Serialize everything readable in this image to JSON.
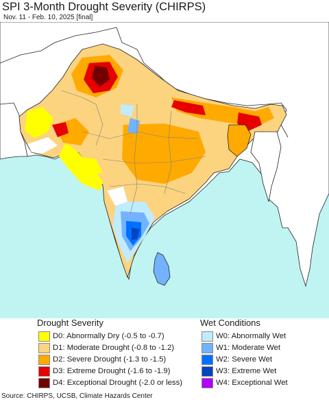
{
  "title": "SPI 3-Month Drought Severity (CHIRPS)",
  "subtitle": "Nov. 11 - Feb. 10, 2025 [final]",
  "colors": {
    "ocean": "#bff4f2",
    "land_outside": "#ffffff",
    "border": "#222222",
    "state_border": "#7f7f7f"
  },
  "legend": {
    "drought_title": "Drought Severity",
    "wet_title": "Wet Conditions",
    "drought_items": [
      {
        "label": "D0: Abnormally Dry (-0.5 to -0.7)",
        "color": "#ffff00"
      },
      {
        "label": "D1: Moderate Drought (-0.8 to -1.2)",
        "color": "#fcd37f"
      },
      {
        "label": "D2: Severe Drought (-1.3 to -1.5)",
        "color": "#ffaa00"
      },
      {
        "label": "D3: Extreme Drought (-1.6 to -1.9)",
        "color": "#e60000"
      },
      {
        "label": "D4: Exceptional Drought (-2.0 or less)",
        "color": "#730000"
      }
    ],
    "wet_items": [
      {
        "label": "W0: Abnormally Wet",
        "color": "#bfecff"
      },
      {
        "label": "W1: Moderate Wet",
        "color": "#73b2ff"
      },
      {
        "label": "W2: Severe Wet",
        "color": "#0070ff"
      },
      {
        "label": "W3: Extreme Wet",
        "color": "#0044c4"
      },
      {
        "label": "W4: Exceptional Wet",
        "color": "#b000ff"
      }
    ]
  },
  "source": "Source: CHIRPS, UCSB, Climate Hazards Center"
}
